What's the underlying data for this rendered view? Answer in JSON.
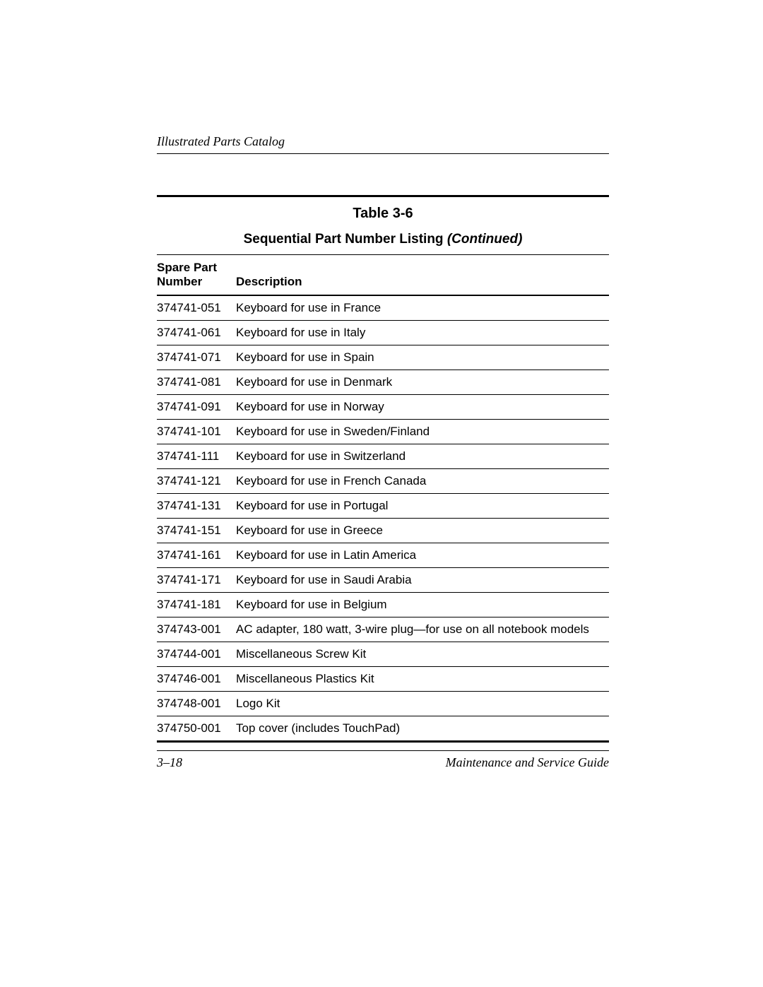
{
  "header": {
    "running_title": "Illustrated Parts Catalog"
  },
  "table": {
    "caption": "Table 3-6",
    "subtitle_main": "Sequential Part Number Listing ",
    "subtitle_cont": "(Continued)",
    "columns": {
      "part_number_line1": "Spare Part",
      "part_number_line2": "Number",
      "description": "Description"
    },
    "rows": [
      {
        "num": "374741-051",
        "desc": "Keyboard for use in France"
      },
      {
        "num": "374741-061",
        "desc": "Keyboard for use in Italy"
      },
      {
        "num": "374741-071",
        "desc": "Keyboard for use in Spain"
      },
      {
        "num": "374741-081",
        "desc": "Keyboard for use in Denmark"
      },
      {
        "num": "374741-091",
        "desc": "Keyboard for use in Norway"
      },
      {
        "num": "374741-101",
        "desc": "Keyboard for use in Sweden/Finland"
      },
      {
        "num": "374741-111",
        "desc": "Keyboard for use in Switzerland"
      },
      {
        "num": "374741-121",
        "desc": "Keyboard for use in French Canada"
      },
      {
        "num": "374741-131",
        "desc": "Keyboard for use in Portugal"
      },
      {
        "num": "374741-151",
        "desc": "Keyboard for use in Greece"
      },
      {
        "num": "374741-161",
        "desc": "Keyboard for use in Latin America"
      },
      {
        "num": "374741-171",
        "desc": "Keyboard for use in Saudi Arabia"
      },
      {
        "num": "374741-181",
        "desc": "Keyboard for use in Belgium"
      },
      {
        "num": "374743-001",
        "desc": "AC adapter, 180 watt, 3-wire plug—for use on all notebook models"
      },
      {
        "num": "374744-001",
        "desc": "Miscellaneous Screw Kit"
      },
      {
        "num": "374746-001",
        "desc": "Miscellaneous Plastics Kit"
      },
      {
        "num": "374748-001",
        "desc": "Logo Kit"
      },
      {
        "num": "374750-001",
        "desc": "Top cover (includes TouchPad)"
      }
    ]
  },
  "footer": {
    "page_number": "3–18",
    "doc_title": "Maintenance and Service Guide"
  }
}
